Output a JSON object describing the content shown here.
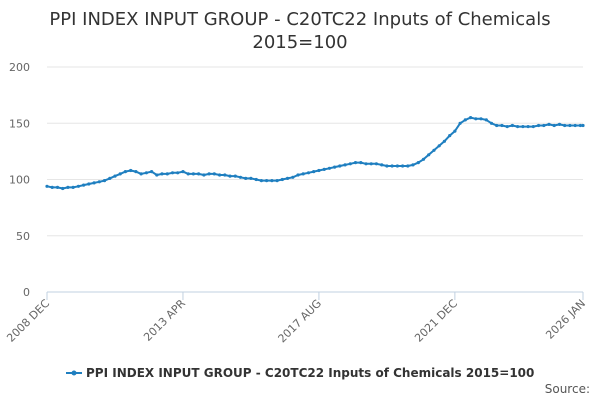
{
  "chart_data": {
    "type": "line",
    "title": "PPI INDEX INPUT GROUP - C20TC22 Inputs of Chemicals 2015=100",
    "title_lines": [
      "PPI INDEX INPUT GROUP - C20TC22 Inputs of Chemicals",
      "2015=100"
    ],
    "xlabel": "",
    "ylabel": "",
    "ylim": [
      0,
      200
    ],
    "yticks": [
      0,
      50,
      100,
      150,
      200
    ],
    "xlim": [
      "2008-12",
      "2026-01"
    ],
    "x_tick_labels": [
      {
        "date": "2008-12",
        "label": "2008 DEC"
      },
      {
        "date": "2013-04",
        "label": "2013 APR"
      },
      {
        "date": "2017-08",
        "label": "2017 AUG"
      },
      {
        "date": "2021-12",
        "label": "2021 DEC"
      },
      {
        "date": "2026-01",
        "label": "2026 JAN"
      }
    ],
    "grid": true,
    "legend_position": "bottom-center",
    "series_color": "#1f7fc0",
    "series": [
      {
        "name": "PPI INDEX INPUT GROUP - C20TC22 Inputs of Chemicals 2015=100",
        "points": [
          [
            "2008-12",
            94
          ],
          [
            "2009-02",
            93
          ],
          [
            "2009-04",
            93
          ],
          [
            "2009-06",
            92
          ],
          [
            "2009-08",
            93
          ],
          [
            "2009-10",
            93
          ],
          [
            "2009-12",
            94
          ],
          [
            "2010-02",
            95
          ],
          [
            "2010-04",
            96
          ],
          [
            "2010-06",
            97
          ],
          [
            "2010-08",
            98
          ],
          [
            "2010-10",
            99
          ],
          [
            "2010-12",
            101
          ],
          [
            "2011-02",
            103
          ],
          [
            "2011-04",
            105
          ],
          [
            "2011-06",
            107
          ],
          [
            "2011-08",
            108
          ],
          [
            "2011-10",
            107
          ],
          [
            "2011-12",
            105
          ],
          [
            "2012-02",
            106
          ],
          [
            "2012-04",
            107
          ],
          [
            "2012-06",
            104
          ],
          [
            "2012-08",
            105
          ],
          [
            "2012-10",
            105
          ],
          [
            "2012-12",
            106
          ],
          [
            "2013-02",
            106
          ],
          [
            "2013-04",
            107
          ],
          [
            "2013-06",
            105
          ],
          [
            "2013-08",
            105
          ],
          [
            "2013-10",
            105
          ],
          [
            "2013-12",
            104
          ],
          [
            "2014-02",
            105
          ],
          [
            "2014-04",
            105
          ],
          [
            "2014-06",
            104
          ],
          [
            "2014-08",
            104
          ],
          [
            "2014-10",
            103
          ],
          [
            "2014-12",
            103
          ],
          [
            "2015-02",
            102
          ],
          [
            "2015-04",
            101
          ],
          [
            "2015-06",
            101
          ],
          [
            "2015-08",
            100
          ],
          [
            "2015-10",
            99
          ],
          [
            "2015-12",
            99
          ],
          [
            "2016-02",
            99
          ],
          [
            "2016-04",
            99
          ],
          [
            "2016-06",
            100
          ],
          [
            "2016-08",
            101
          ],
          [
            "2016-10",
            102
          ],
          [
            "2016-12",
            104
          ],
          [
            "2017-02",
            105
          ],
          [
            "2017-04",
            106
          ],
          [
            "2017-06",
            107
          ],
          [
            "2017-08",
            108
          ],
          [
            "2017-10",
            109
          ],
          [
            "2017-12",
            110
          ],
          [
            "2018-02",
            111
          ],
          [
            "2018-04",
            112
          ],
          [
            "2018-06",
            113
          ],
          [
            "2018-08",
            114
          ],
          [
            "2018-10",
            115
          ],
          [
            "2018-12",
            115
          ],
          [
            "2019-02",
            114
          ],
          [
            "2019-04",
            114
          ],
          [
            "2019-06",
            114
          ],
          [
            "2019-08",
            113
          ],
          [
            "2019-10",
            112
          ],
          [
            "2019-12",
            112
          ],
          [
            "2020-02",
            112
          ],
          [
            "2020-04",
            112
          ],
          [
            "2020-06",
            112
          ],
          [
            "2020-08",
            113
          ],
          [
            "2020-10",
            115
          ],
          [
            "2020-12",
            118
          ],
          [
            "2021-02",
            122
          ],
          [
            "2021-04",
            126
          ],
          [
            "2021-06",
            130
          ],
          [
            "2021-08",
            134
          ],
          [
            "2021-10",
            139
          ],
          [
            "2021-12",
            143
          ],
          [
            "2022-02",
            150
          ],
          [
            "2022-04",
            153
          ],
          [
            "2022-06",
            155
          ],
          [
            "2022-08",
            154
          ],
          [
            "2022-10",
            154
          ],
          [
            "2022-12",
            153
          ],
          [
            "2023-02",
            150
          ],
          [
            "2023-04",
            148
          ],
          [
            "2023-06",
            148
          ],
          [
            "2023-08",
            147
          ],
          [
            "2023-10",
            148
          ],
          [
            "2023-12",
            147
          ],
          [
            "2024-02",
            147
          ],
          [
            "2024-04",
            147
          ],
          [
            "2024-06",
            147
          ],
          [
            "2024-08",
            148
          ],
          [
            "2024-10",
            148
          ],
          [
            "2024-12",
            149
          ],
          [
            "2025-02",
            148
          ],
          [
            "2025-04",
            149
          ],
          [
            "2025-06",
            148
          ],
          [
            "2025-08",
            148
          ],
          [
            "2025-10",
            148
          ],
          [
            "2025-12",
            148
          ],
          [
            "2026-01",
            148
          ]
        ]
      }
    ]
  },
  "legend": {
    "label": "PPI INDEX INPUT GROUP - C20TC22 Inputs of Chemicals 2015=100"
  },
  "source": {
    "label": "Source:"
  }
}
